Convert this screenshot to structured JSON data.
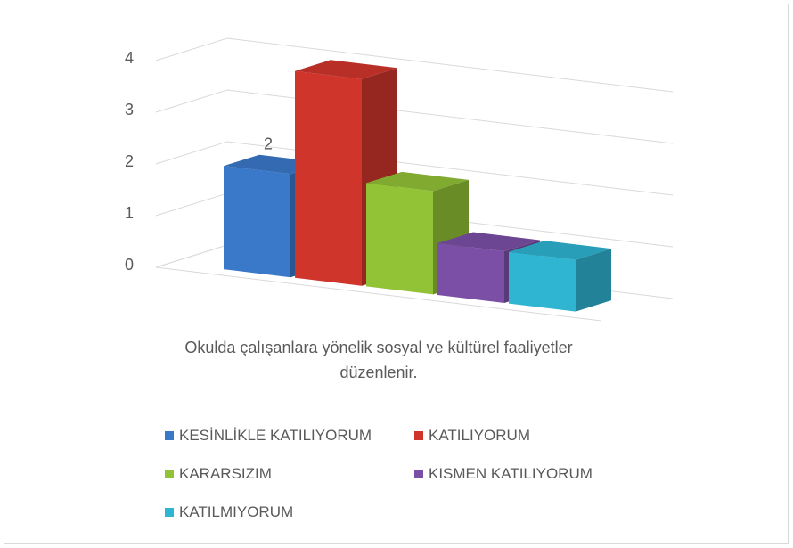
{
  "chart_data": {
    "type": "bar3d",
    "categories": [
      "Okulda çalışanlara yönelik sosyal ve kültürel faaliyetler düzenlenir."
    ],
    "series": [
      {
        "name": "KESİNLİKLE KATILIYORUM",
        "color": "#3a78c9",
        "values": [
          2
        ],
        "show_label": true
      },
      {
        "name": "KATILIYORUM",
        "color": "#d0352c",
        "values": [
          4
        ]
      },
      {
        "name": "KARARSIZIM",
        "color": "#92c236",
        "values": [
          2
        ]
      },
      {
        "name": "KISMEN KATILIYORUM",
        "color": "#7b4fa6",
        "values": [
          1
        ]
      },
      {
        "name": "KATILMIYORUM",
        "color": "#2fb4d2",
        "values": [
          1
        ]
      }
    ],
    "ylim": [
      0,
      4
    ],
    "yticks": [
      0,
      1,
      2,
      3,
      4
    ],
    "grid": true,
    "legend": "bottom"
  }
}
